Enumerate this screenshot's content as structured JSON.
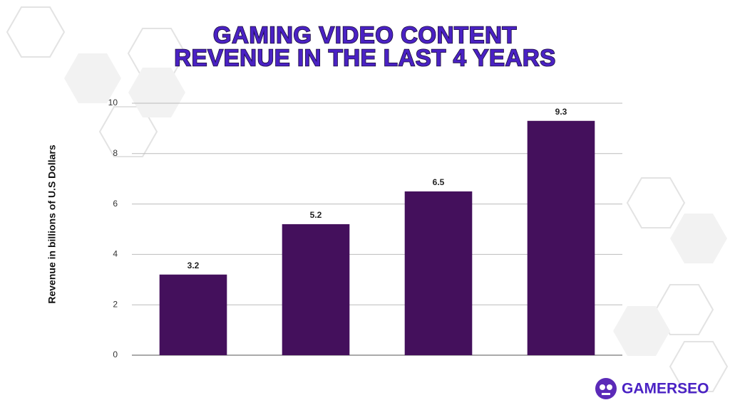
{
  "chart_data": {
    "type": "bar",
    "title": [
      "GAMING VIDEO  CONTENT",
      "REVENUE IN THE LAST 4 YEARS"
    ],
    "y_label": "Revenue in billions of U.S Dollars",
    "categories": [
      null,
      null,
      null,
      null
    ],
    "values": [
      3.2,
      5.2,
      6.5,
      9.3
    ],
    "color": "#44105c",
    "ylim": [
      0,
      10
    ],
    "yticks": [
      0,
      2,
      4,
      6,
      8,
      10
    ],
    "grid": true,
    "brand": "GAMERSEO"
  }
}
